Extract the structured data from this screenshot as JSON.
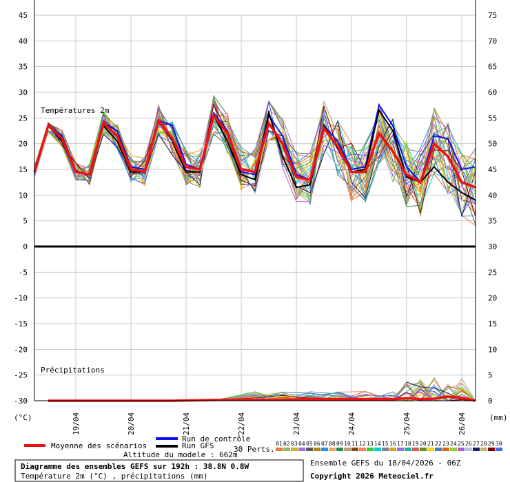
{
  "chart_data": {
    "type": "line",
    "title": "Diagramme des ensembles GEFS sur 192h : 38.8N 0.8W",
    "subtitle": "Température 2m (°C) , précipitations (mm)",
    "run_info": "Ensemble GEFS du 18/04/2026 - 06Z",
    "copyright": "Copyright 2026 Meteociel.fr",
    "altitude": "Altitude du modele : 662m",
    "panel_temp_label": "Températures 2m",
    "panel_precip_label": "Précipitations",
    "left_unit": "(°C)",
    "right_unit": "(mm)",
    "x_dates": [
      "19/04",
      "20/04",
      "21/04",
      "22/04",
      "23/04",
      "24/04",
      "25/04",
      "26/04"
    ],
    "x_date_hours": [
      18,
      42,
      66,
      90,
      114,
      138,
      162,
      186
    ],
    "x_hour_range": [
      0,
      192
    ],
    "left_ticks": [
      "45",
      "40",
      "35",
      "30",
      "25",
      "20",
      "15",
      "10",
      "5",
      "0",
      "-5",
      "-10",
      "-15",
      "-20",
      "-25",
      "-30"
    ],
    "right_ticks": [
      "75",
      "70",
      "65",
      "60",
      "55",
      "50",
      "45",
      "40",
      "35",
      "30",
      "25",
      "20",
      "15",
      "10",
      "5",
      "0"
    ],
    "temp_axis_range": [
      0,
      45
    ],
    "left_axis_range": [
      -30,
      45
    ],
    "precip_axis_range": [
      0,
      30
    ],
    "legend": {
      "mean": "Moyenne des scénarios",
      "control": "Run de contrôle",
      "gfs": "Run GFS",
      "perts_label": "30 Perts.",
      "mean_color": "#ee1111",
      "control_color": "#1111ee",
      "gfs_color": "#000000"
    },
    "pert_labels": [
      "01",
      "02",
      "03",
      "04",
      "05",
      "06",
      "07",
      "08",
      "09",
      "10",
      "11",
      "12",
      "13",
      "14",
      "15",
      "16",
      "17",
      "18",
      "19",
      "20",
      "21",
      "22",
      "23",
      "24",
      "25",
      "26",
      "27",
      "28",
      "29",
      "30"
    ],
    "pert_colors": [
      "#e07b39",
      "#8fbc5a",
      "#d4b21c",
      "#a86fd6",
      "#5a5a5a",
      "#b8860b",
      "#1e90ff",
      "#f4a460",
      "#2e8b57",
      "#c0a070",
      "#8b4513",
      "#ff7f50",
      "#32cd32",
      "#00ced1",
      "#778899",
      "#daa520",
      "#9370db",
      "#20b2aa",
      "#cd5c5c",
      "#6b8e23",
      "#ffd700",
      "#4682b4",
      "#d2691e",
      "#9acd32",
      "#ba55d3",
      "#b0c4de",
      "#191970",
      "#bdb76b",
      "#800000",
      "#4169e1"
    ],
    "series": [
      {
        "name": "Moyenne des scénarios",
        "hours": [
          0,
          6,
          12,
          18,
          24,
          30,
          36,
          42,
          48,
          54,
          60,
          66,
          72,
          78,
          84,
          90,
          96,
          102,
          108,
          114,
          120,
          126,
          132,
          138,
          144,
          150,
          156,
          162,
          168,
          174,
          180,
          186,
          192
        ],
        "values": [
          14.5,
          23.5,
          21,
          14.5,
          14,
          24,
          21.5,
          15,
          14.5,
          24.5,
          21,
          15.5,
          15,
          25.5,
          22,
          15,
          14.5,
          24,
          20,
          13.5,
          13,
          23,
          19.5,
          14.5,
          14.5,
          22,
          18.5,
          14,
          12.5,
          20,
          17.5,
          12.5,
          11.5
        ]
      },
      {
        "name": "Run de contrôle",
        "hours": [
          0,
          6,
          12,
          18,
          24,
          30,
          36,
          42,
          48,
          54,
          60,
          66,
          72,
          78,
          84,
          90,
          96,
          102,
          108,
          114,
          120,
          126,
          132,
          138,
          144,
          150,
          156,
          162,
          168,
          174,
          180,
          186,
          192
        ],
        "values": [
          14.5,
          23.5,
          21.5,
          14.5,
          14,
          24,
          22.5,
          15.5,
          15,
          24.5,
          23.5,
          16,
          15,
          26,
          22.5,
          14.5,
          14,
          25.5,
          21.5,
          14,
          13,
          23.5,
          20.5,
          15,
          15.5,
          27.5,
          23.5,
          15.5,
          12.5,
          21.5,
          21,
          15,
          15.5
        ]
      },
      {
        "name": "Run GFS",
        "hours": [
          0,
          6,
          12,
          18,
          24,
          30,
          36,
          42,
          48,
          54,
          60,
          66,
          72,
          78,
          84,
          90,
          96,
          102,
          108,
          114,
          120,
          126,
          132,
          138,
          144,
          150,
          156,
          162,
          168,
          174,
          180,
          186,
          192
        ],
        "values": [
          14.5,
          23.5,
          20.5,
          14.5,
          14,
          23.5,
          20.5,
          14.5,
          14.5,
          24.5,
          20.5,
          14.5,
          14.5,
          25.5,
          20.5,
          14,
          13,
          26,
          17.5,
          11.5,
          12,
          23.5,
          19,
          14.5,
          15,
          26.5,
          22.5,
          13.5,
          12.5,
          15.5,
          12.5,
          10.5,
          9
        ]
      }
    ],
    "precip_series": [
      {
        "name": "Moyenne des scénarios",
        "hours": [
          6,
          30,
          60,
          84,
          96,
          108,
          120,
          132,
          144,
          156,
          162,
          168,
          174,
          180,
          186,
          192
        ],
        "values": [
          0,
          0,
          0,
          0.2,
          0.2,
          0.2,
          0.3,
          0.3,
          0.3,
          0.3,
          0.5,
          0.3,
          0.4,
          0.8,
          0.6,
          0
        ]
      }
    ]
  }
}
